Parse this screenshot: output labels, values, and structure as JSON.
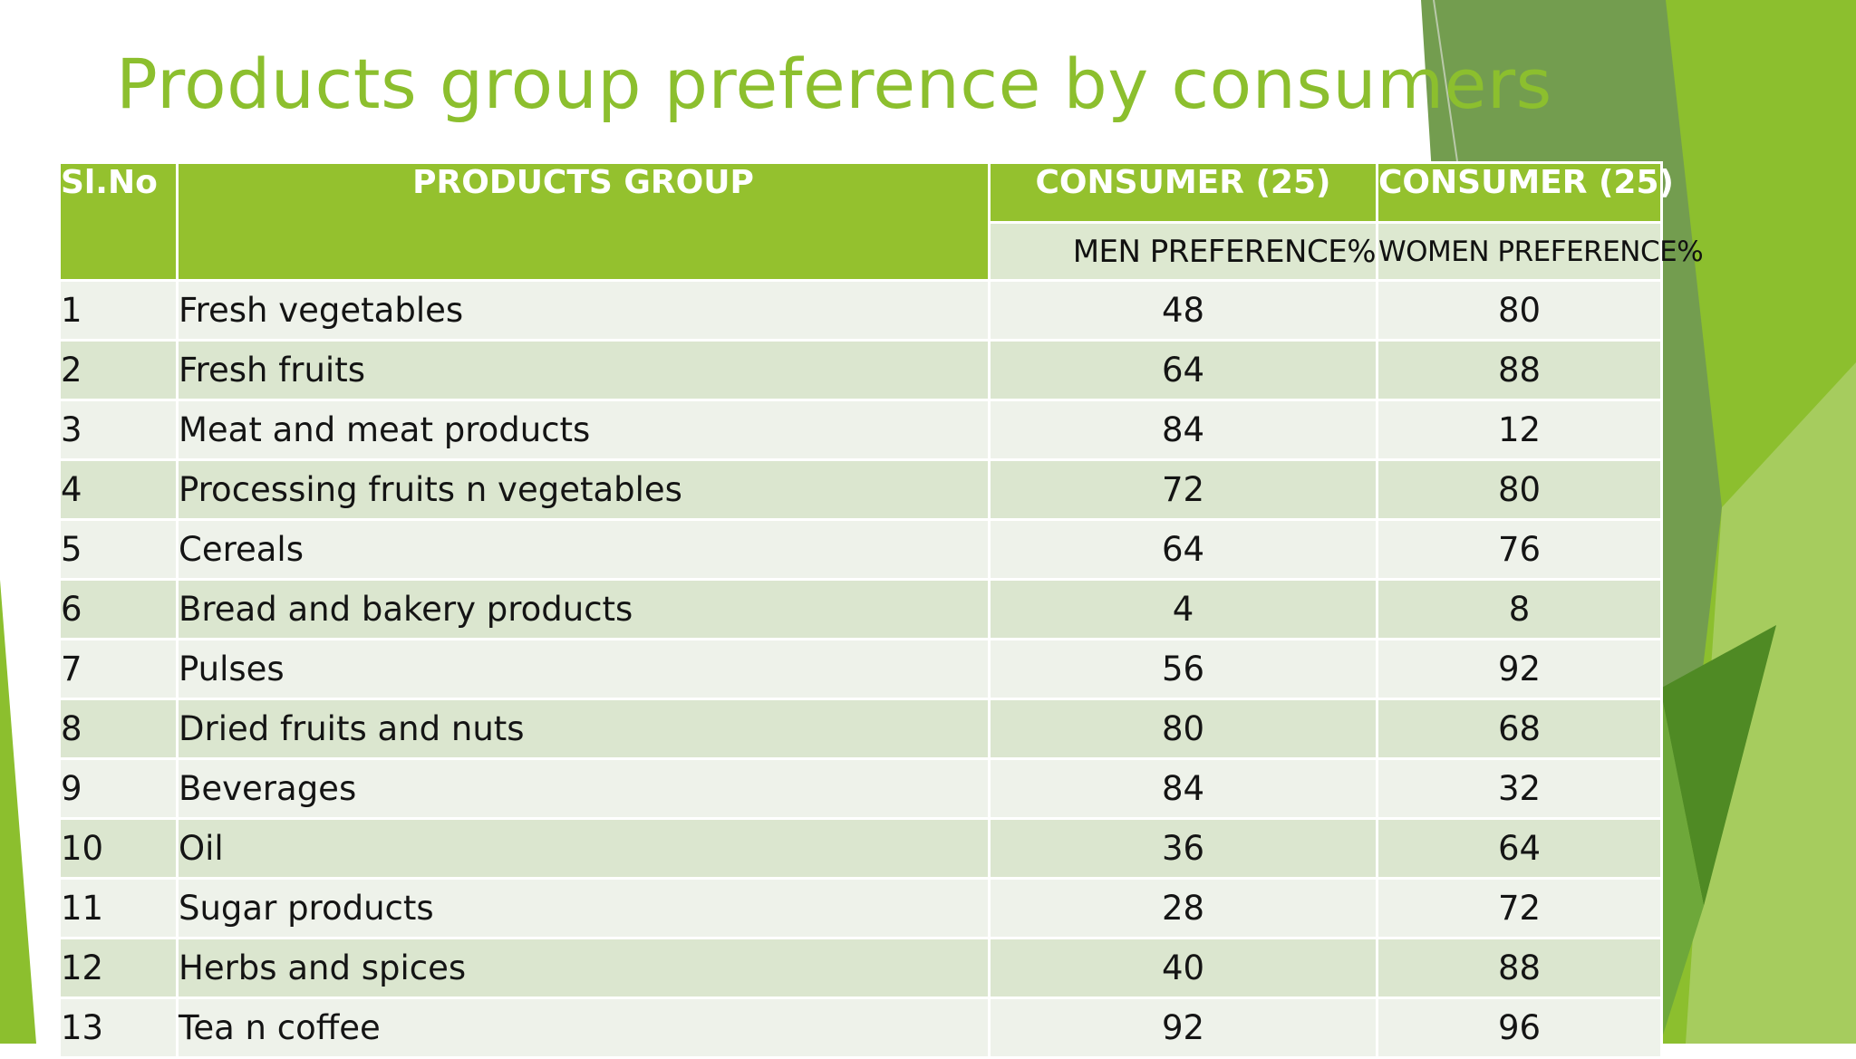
{
  "slide": {
    "title": "Products group preference by consumers"
  },
  "table": {
    "headers": {
      "sl_no": "Sl.No",
      "products_group": "PRODUCTS GROUP",
      "consumer_men": "CONSUMER (25)",
      "consumer_women": "CONSUMER (25)",
      "men_pref": "MEN PREFERENCE%",
      "women_pref": "WOMEN PREFERENCE%"
    },
    "rows": [
      {
        "sl": "1",
        "product": "Fresh vegetables",
        "men": "48",
        "women": "80"
      },
      {
        "sl": "2",
        "product": "Fresh fruits",
        "men": "64",
        "women": "88"
      },
      {
        "sl": "3",
        "product": "Meat and meat products",
        "men": "84",
        "women": "12"
      },
      {
        "sl": "4",
        "product": "Processing fruits n vegetables",
        "men": "72",
        "women": "80"
      },
      {
        "sl": "5",
        "product": "Cereals",
        "men": "64",
        "women": "76"
      },
      {
        "sl": "6",
        "product": "Bread and bakery products",
        "men": "4",
        "women": "8"
      },
      {
        "sl": "7",
        "product": "Pulses",
        "men": "56",
        "women": "92"
      },
      {
        "sl": "8",
        "product": "Dried fruits and nuts",
        "men": "80",
        "women": "68"
      },
      {
        "sl": "9",
        "product": "Beverages",
        "men": "84",
        "women": "32"
      },
      {
        "sl": "10",
        "product": "Oil",
        "men": "36",
        "women": "64"
      },
      {
        "sl": "11",
        "product": "Sugar products",
        "men": "28",
        "women": "72"
      },
      {
        "sl": "12",
        "product": "Herbs and spices",
        "men": "40",
        "women": "88"
      },
      {
        "sl": "13",
        "product": "Tea n coffee",
        "men": "92",
        "women": "96"
      }
    ]
  },
  "colors": {
    "accent": "#8cbf2e",
    "header_fill": "#94c12e",
    "row_light": "#eef2ea",
    "row_dark": "#dbe6cf"
  }
}
